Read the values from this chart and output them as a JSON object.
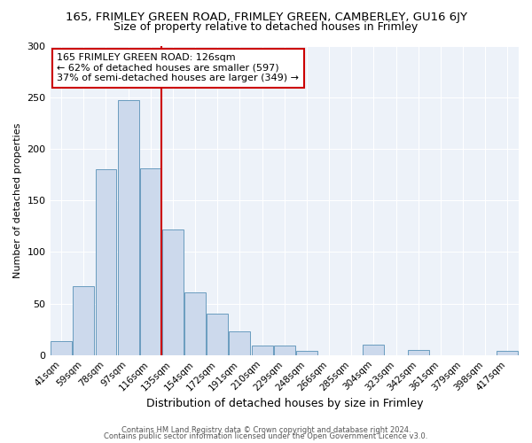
{
  "title": "165, FRIMLEY GREEN ROAD, FRIMLEY GREEN, CAMBERLEY, GU16 6JY",
  "subtitle": "Size of property relative to detached houses in Frimley",
  "xlabel": "Distribution of detached houses by size in Frimley",
  "ylabel": "Number of detached properties",
  "bar_labels": [
    "41sqm",
    "59sqm",
    "78sqm",
    "97sqm",
    "116sqm",
    "135sqm",
    "154sqm",
    "172sqm",
    "191sqm",
    "210sqm",
    "229sqm",
    "248sqm",
    "266sqm",
    "285sqm",
    "304sqm",
    "323sqm",
    "342sqm",
    "361sqm",
    "379sqm",
    "398sqm",
    "417sqm"
  ],
  "bar_values": [
    14,
    67,
    180,
    247,
    181,
    122,
    61,
    40,
    23,
    9,
    9,
    4,
    0,
    0,
    10,
    0,
    5,
    0,
    0,
    0,
    4
  ],
  "bar_color": "#ccd9ec",
  "bar_edge_color": "#6a9cbf",
  "vline_x_index": 4,
  "vline_color": "#cc0000",
  "annotation_line1": "165 FRIMLEY GREEN ROAD: 126sqm",
  "annotation_line2": "← 62% of detached houses are smaller (597)",
  "annotation_line3": "37% of semi-detached houses are larger (349) →",
  "annotation_box_color": "#ffffff",
  "annotation_box_edge": "#cc0000",
  "ylim": [
    0,
    300
  ],
  "yticks": [
    0,
    50,
    100,
    150,
    200,
    250,
    300
  ],
  "footer1": "Contains HM Land Registry data © Crown copyright and database right 2024.",
  "footer2": "Contains public sector information licensed under the Open Government Licence v3.0.",
  "bg_color": "#edf2f9",
  "title_fontsize": 9.5,
  "subtitle_fontsize": 9,
  "grid_color": "#ffffff"
}
